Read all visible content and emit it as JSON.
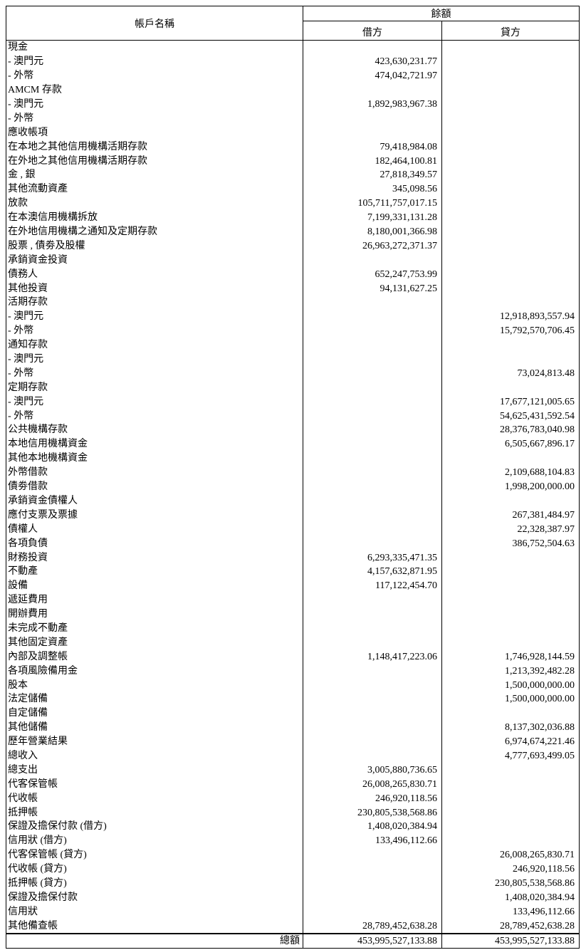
{
  "header": {
    "account_name": "帳戶名稱",
    "balance": "餘額",
    "debit": "借方",
    "credit": "貸方"
  },
  "rows": [
    [
      "現金",
      "",
      ""
    ],
    [
      " - 澳門元",
      "423,630,231.77",
      ""
    ],
    [
      " - 外幣",
      "474,042,721.97",
      ""
    ],
    [
      "AMCM 存款",
      "",
      ""
    ],
    [
      " - 澳門元",
      "1,892,983,967.38",
      ""
    ],
    [
      " - 外幣",
      "",
      ""
    ],
    [
      "應收帳項",
      "",
      ""
    ],
    [
      "在本地之其他信用機構活期存款",
      "79,418,984.08",
      ""
    ],
    [
      "在外地之其他信用機構活期存款",
      "182,464,100.81",
      ""
    ],
    [
      "金 , 銀",
      "27,818,349.57",
      ""
    ],
    [
      "其他流動資產",
      "345,098.56",
      ""
    ],
    [
      "放款",
      "105,711,757,017.15",
      ""
    ],
    [
      "在本澳信用機構拆放",
      "7,199,331,131.28",
      ""
    ],
    [
      "在外地信用機構之通知及定期存款",
      "8,180,001,366.98",
      ""
    ],
    [
      "股票 , 債劵及股權",
      "26,963,272,371.37",
      ""
    ],
    [
      "承銷資金投資",
      "",
      ""
    ],
    [
      "債務人",
      "652,247,753.99",
      ""
    ],
    [
      "其他投資",
      "94,131,627.25",
      ""
    ],
    [
      "活期存款",
      "",
      ""
    ],
    [
      " - 澳門元",
      "",
      "12,918,893,557.94"
    ],
    [
      " - 外幣",
      "",
      "15,792,570,706.45"
    ],
    [
      "通知存款",
      "",
      ""
    ],
    [
      " - 澳門元",
      "",
      ""
    ],
    [
      " - 外幣",
      "",
      "73,024,813.48"
    ],
    [
      "定期存款",
      "",
      ""
    ],
    [
      " - 澳門元",
      "",
      "17,677,121,005.65"
    ],
    [
      " - 外幣",
      "",
      "54,625,431,592.54"
    ],
    [
      "公共機構存款",
      "",
      "28,376,783,040.98"
    ],
    [
      "本地信用機構資金",
      "",
      "6,505,667,896.17"
    ],
    [
      "其他本地機構資金",
      "",
      ""
    ],
    [
      "外幣借款",
      "",
      "2,109,688,104.83"
    ],
    [
      "債劵借款",
      "",
      "1,998,200,000.00"
    ],
    [
      "承銷資金債權人",
      "",
      ""
    ],
    [
      "應付支票及票據",
      "",
      "267,381,484.97"
    ],
    [
      "債權人",
      "",
      "22,328,387.97"
    ],
    [
      "各項負債",
      "",
      "386,752,504.63"
    ],
    [
      "財務投資",
      "6,293,335,471.35",
      ""
    ],
    [
      "不動產",
      "4,157,632,871.95",
      ""
    ],
    [
      "設備",
      "117,122,454.70",
      ""
    ],
    [
      "遞延費用",
      "",
      ""
    ],
    [
      "開辦費用",
      "",
      ""
    ],
    [
      "未完成不動產",
      "",
      ""
    ],
    [
      "其他固定資產",
      "",
      ""
    ],
    [
      "內部及調整帳",
      "1,148,417,223.06",
      "1,746,928,144.59"
    ],
    [
      "各項風險備用金",
      "",
      "1,213,392,482.28"
    ],
    [
      "股本",
      "",
      "1,500,000,000.00"
    ],
    [
      "法定儲備",
      "",
      "1,500,000,000.00"
    ],
    [
      "自定儲備",
      "",
      ""
    ],
    [
      "其他儲備",
      "",
      "8,137,302,036.88"
    ],
    [
      "歷年營業結果",
      "",
      "6,974,674,221.46"
    ],
    [
      "總收入",
      "",
      "4,777,693,499.05"
    ],
    [
      "總支出",
      "3,005,880,736.65",
      ""
    ],
    [
      "代客保管帳",
      "26,008,265,830.71",
      ""
    ],
    [
      "代收帳",
      "246,920,118.56",
      ""
    ],
    [
      "抵押帳",
      "230,805,538,568.86",
      ""
    ],
    [
      "保證及擔保付款 (借方)",
      "1,408,020,384.94",
      ""
    ],
    [
      "信用狀 (借方)",
      "133,496,112.66",
      ""
    ],
    [
      "代客保管帳 (貸方)",
      "",
      "26,008,265,830.71"
    ],
    [
      "代收帳 (貸方)",
      "",
      "246,920,118.56"
    ],
    [
      "抵押帳 (貸方)",
      "",
      "230,805,538,568.86"
    ],
    [
      "保證及擔保付款",
      "",
      "1,408,020,384.94"
    ],
    [
      "信用狀",
      "",
      "133,496,112.66"
    ],
    [
      "其他備查帳",
      "28,789,452,638.28",
      "28,789,452,638.28"
    ]
  ],
  "total": {
    "label": "總額",
    "debit": "453,995,527,133.88",
    "credit": "453,995,527,133.88"
  }
}
